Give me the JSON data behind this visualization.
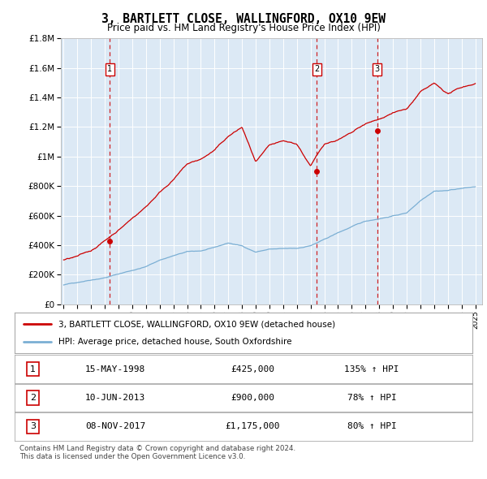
{
  "title": "3, BARTLETT CLOSE, WALLINGFORD, OX10 9EW",
  "subtitle": "Price paid vs. HM Land Registry's House Price Index (HPI)",
  "legend_line1": "3, BARTLETT CLOSE, WALLINGFORD, OX10 9EW (detached house)",
  "legend_line2": "HPI: Average price, detached house, South Oxfordshire",
  "footer1": "Contains HM Land Registry data © Crown copyright and database right 2024.",
  "footer2": "This data is licensed under the Open Government Licence v3.0.",
  "sale_points": [
    {
      "num": 1,
      "date": "15-MAY-1998",
      "price": 425000,
      "year": 1998.37,
      "hpi_label": "135% ↑ HPI"
    },
    {
      "num": 2,
      "date": "10-JUN-2013",
      "price": 900000,
      "year": 2013.44,
      "hpi_label": "78% ↑ HPI"
    },
    {
      "num": 3,
      "date": "08-NOV-2017",
      "price": 1175000,
      "year": 2017.85,
      "hpi_label": "80% ↑ HPI"
    }
  ],
  "red_line_color": "#cc0000",
  "blue_line_color": "#7bafd4",
  "plot_bg_color": "#dce9f5",
  "ylim": [
    0,
    1800000
  ],
  "xlim_start": 1994.8,
  "xlim_end": 2025.5,
  "yticks": [
    0,
    200000,
    400000,
    600000,
    800000,
    1000000,
    1200000,
    1400000,
    1600000,
    1800000
  ],
  "ytick_labels": [
    "£0",
    "£200K",
    "£400K",
    "£600K",
    "£800K",
    "£1M",
    "£1.2M",
    "£1.4M",
    "£1.6M",
    "£1.8M"
  ],
  "xticks": [
    1995,
    1996,
    1997,
    1998,
    1999,
    2000,
    2001,
    2002,
    2003,
    2004,
    2005,
    2006,
    2007,
    2008,
    2009,
    2010,
    2011,
    2012,
    2013,
    2014,
    2015,
    2016,
    2017,
    2018,
    2019,
    2020,
    2021,
    2022,
    2023,
    2024,
    2025
  ],
  "hpi_base": {
    "1995": 130000,
    "1996": 148000,
    "1997": 168000,
    "1998": 185000,
    "1999": 210000,
    "2000": 235000,
    "2001": 260000,
    "2002": 305000,
    "2003": 335000,
    "2004": 360000,
    "2005": 365000,
    "2006": 385000,
    "2007": 415000,
    "2008": 395000,
    "2009": 355000,
    "2010": 375000,
    "2011": 375000,
    "2012": 375000,
    "2013": 395000,
    "2014": 435000,
    "2015": 480000,
    "2016": 520000,
    "2017": 555000,
    "2018": 575000,
    "2019": 595000,
    "2020": 615000,
    "2021": 700000,
    "2022": 770000,
    "2023": 775000,
    "2024": 790000,
    "2025": 800000
  },
  "red_base": {
    "1995": 300000,
    "1996": 320000,
    "1997": 355000,
    "1998": 425000,
    "1999": 500000,
    "2000": 580000,
    "2001": 660000,
    "2002": 760000,
    "2003": 850000,
    "2004": 950000,
    "2005": 980000,
    "2006": 1040000,
    "2007": 1130000,
    "2008": 1190000,
    "2009": 950000,
    "2010": 1050000,
    "2011": 1070000,
    "2012": 1050000,
    "2013": 900000,
    "2014": 1050000,
    "2015": 1080000,
    "2016": 1120000,
    "2017": 1175000,
    "2018": 1200000,
    "2019": 1250000,
    "2020": 1270000,
    "2021": 1380000,
    "2022": 1430000,
    "2023": 1360000,
    "2024": 1400000,
    "2025": 1430000
  }
}
